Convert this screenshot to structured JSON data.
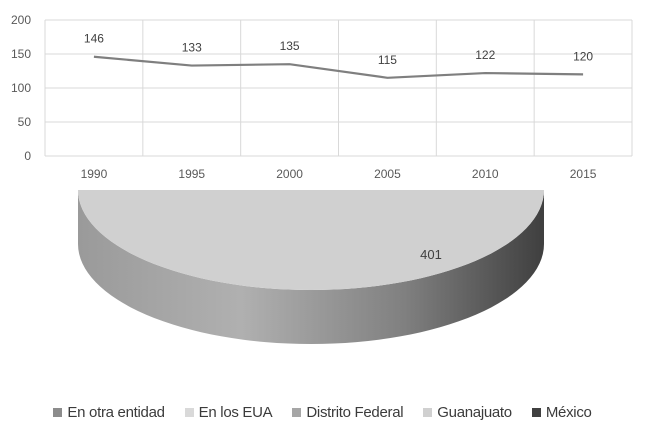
{
  "chart_data": [
    {
      "type": "line",
      "title": "",
      "xlabel": "",
      "ylabel": "",
      "categories": [
        "1990",
        "1995",
        "2000",
        "2005",
        "2010",
        "2015"
      ],
      "series": [
        {
          "values": [
            146,
            133,
            135,
            115,
            122,
            120
          ],
          "color": "#7f7f7f"
        }
      ],
      "ylim": [
        0,
        200
      ],
      "yticks": [
        "0",
        "50",
        "100",
        "150",
        "200"
      ],
      "grid": true,
      "legend": "none"
    },
    {
      "type": "pie",
      "style": "3d",
      "slices": [
        {
          "label": "En otra entidad",
          "value": null,
          "color": "#8c8c8c"
        },
        {
          "label": "En los EUA",
          "value": null,
          "color": "#d9d9d9"
        },
        {
          "label": "Distrito Federal",
          "value": null,
          "color": "#a6a6a6"
        },
        {
          "label": "Guanajuato",
          "value": 401,
          "color": "#d0d0d0"
        },
        {
          "label": "México",
          "value": null,
          "color": "#404040"
        }
      ],
      "visible_data_label": "401",
      "legend": "bottom"
    }
  ]
}
